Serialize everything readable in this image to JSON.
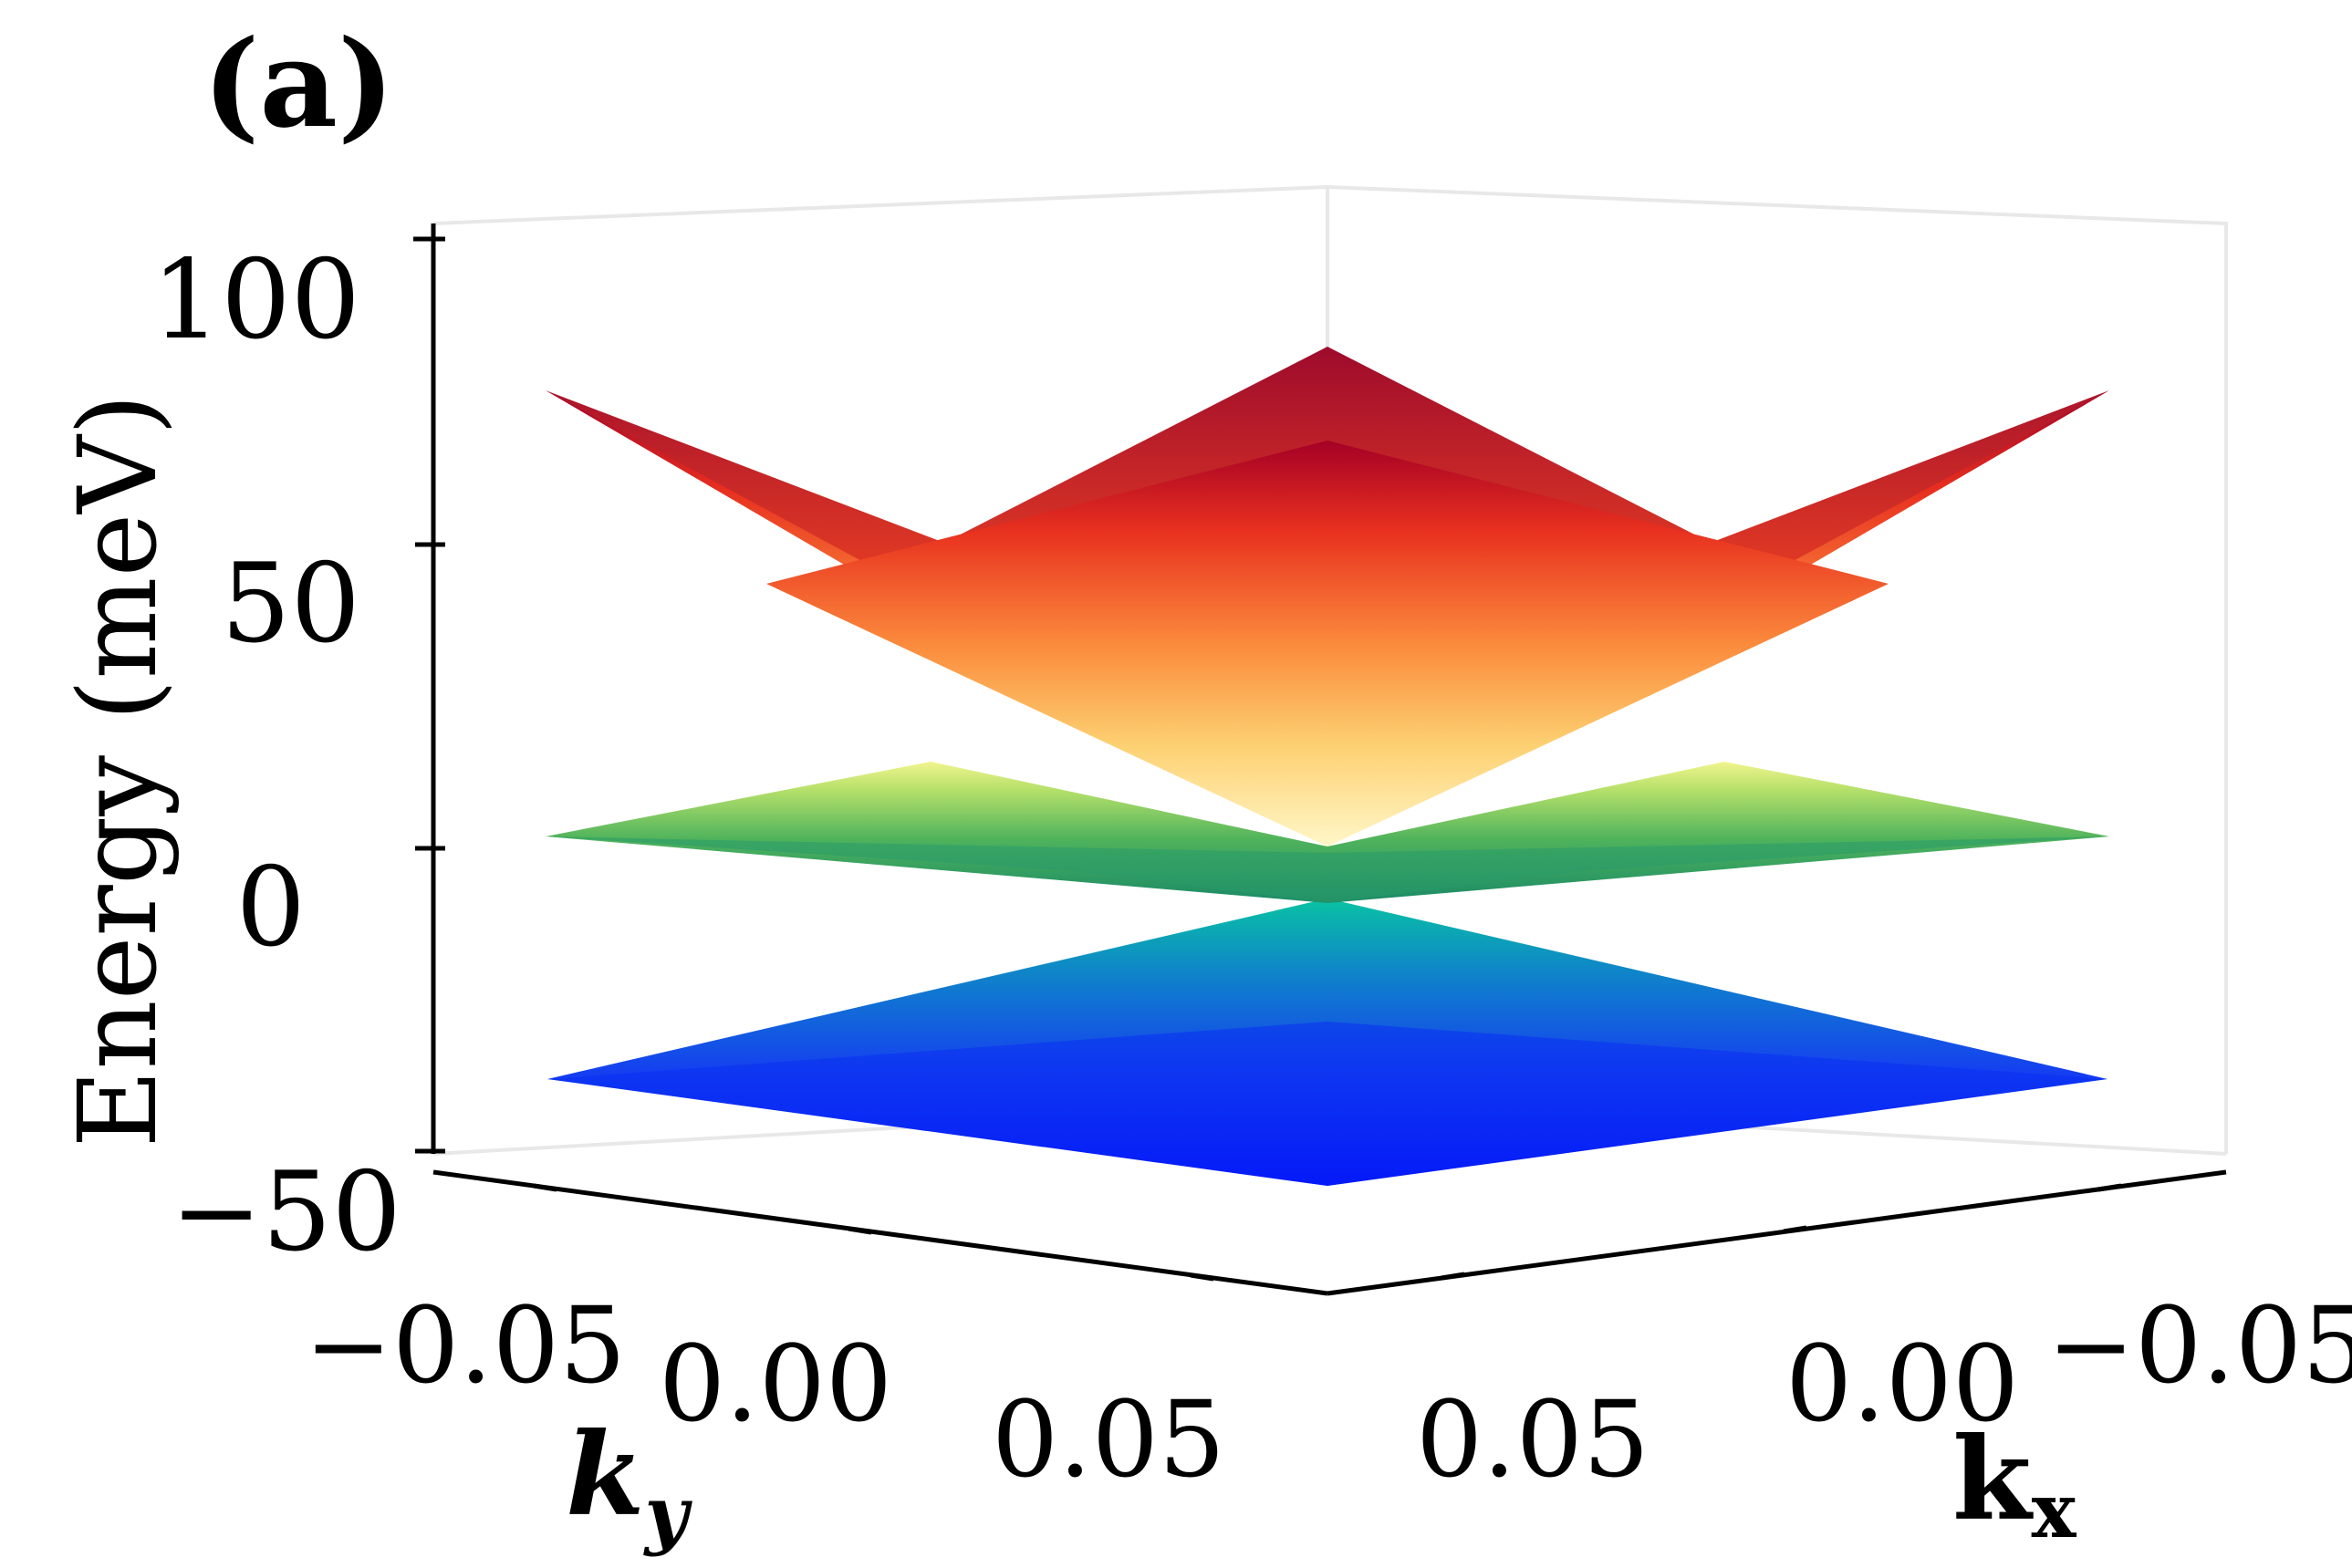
{
  "panel_label": "(a)",
  "colors": {
    "axis": "#000000",
    "pane_edge": "#e8e8e8",
    "upper_band_gradient": [
      "#fff7c8",
      "#fdd071",
      "#fb8a3c",
      "#e8301f",
      "#a50026"
    ],
    "middle_band_gradient": [
      "#1f8f6a",
      "#5cbb5d",
      "#b5e06a",
      "#f1f58d"
    ],
    "lower_band_gradient": [
      "#0000ff",
      "#1540f0",
      "#0f86c8",
      "#09c3a3"
    ]
  },
  "chart_data": {
    "type": "surface3d",
    "title": "",
    "zlabel": "Energy (meV)",
    "xlabel": "k",
    "xlabel_sub": "x",
    "ylabel": "k",
    "ylabel_sub": "y",
    "zlim": [
      -50,
      100
    ],
    "z_ticks": [
      "100",
      "50",
      "0",
      "−50"
    ],
    "x_ticks": [
      "−0.05",
      "0.00",
      "0.05"
    ],
    "y_ticks": [
      "−0.05",
      "0.00",
      "0.05"
    ],
    "kx_range": [
      -0.07,
      0.07
    ],
    "ky_range": [
      -0.07,
      0.07
    ],
    "surfaces": [
      {
        "band": "upper",
        "energy_at_gamma_meV": 0,
        "energy_at_corner_meV": 80,
        "energy_at_edge_meV": 50,
        "colormap": "YlOrRd"
      },
      {
        "band": "middle",
        "energy_at_gamma_meV": 0,
        "energy_at_corner_meV": 2,
        "energy_at_edge_meV": 5,
        "colormap": "summer"
      },
      {
        "band": "lower",
        "energy_at_gamma_meV": 0,
        "energy_at_corner_meV": -38,
        "energy_at_edge_meV": -42,
        "colormap": "winter"
      }
    ]
  }
}
